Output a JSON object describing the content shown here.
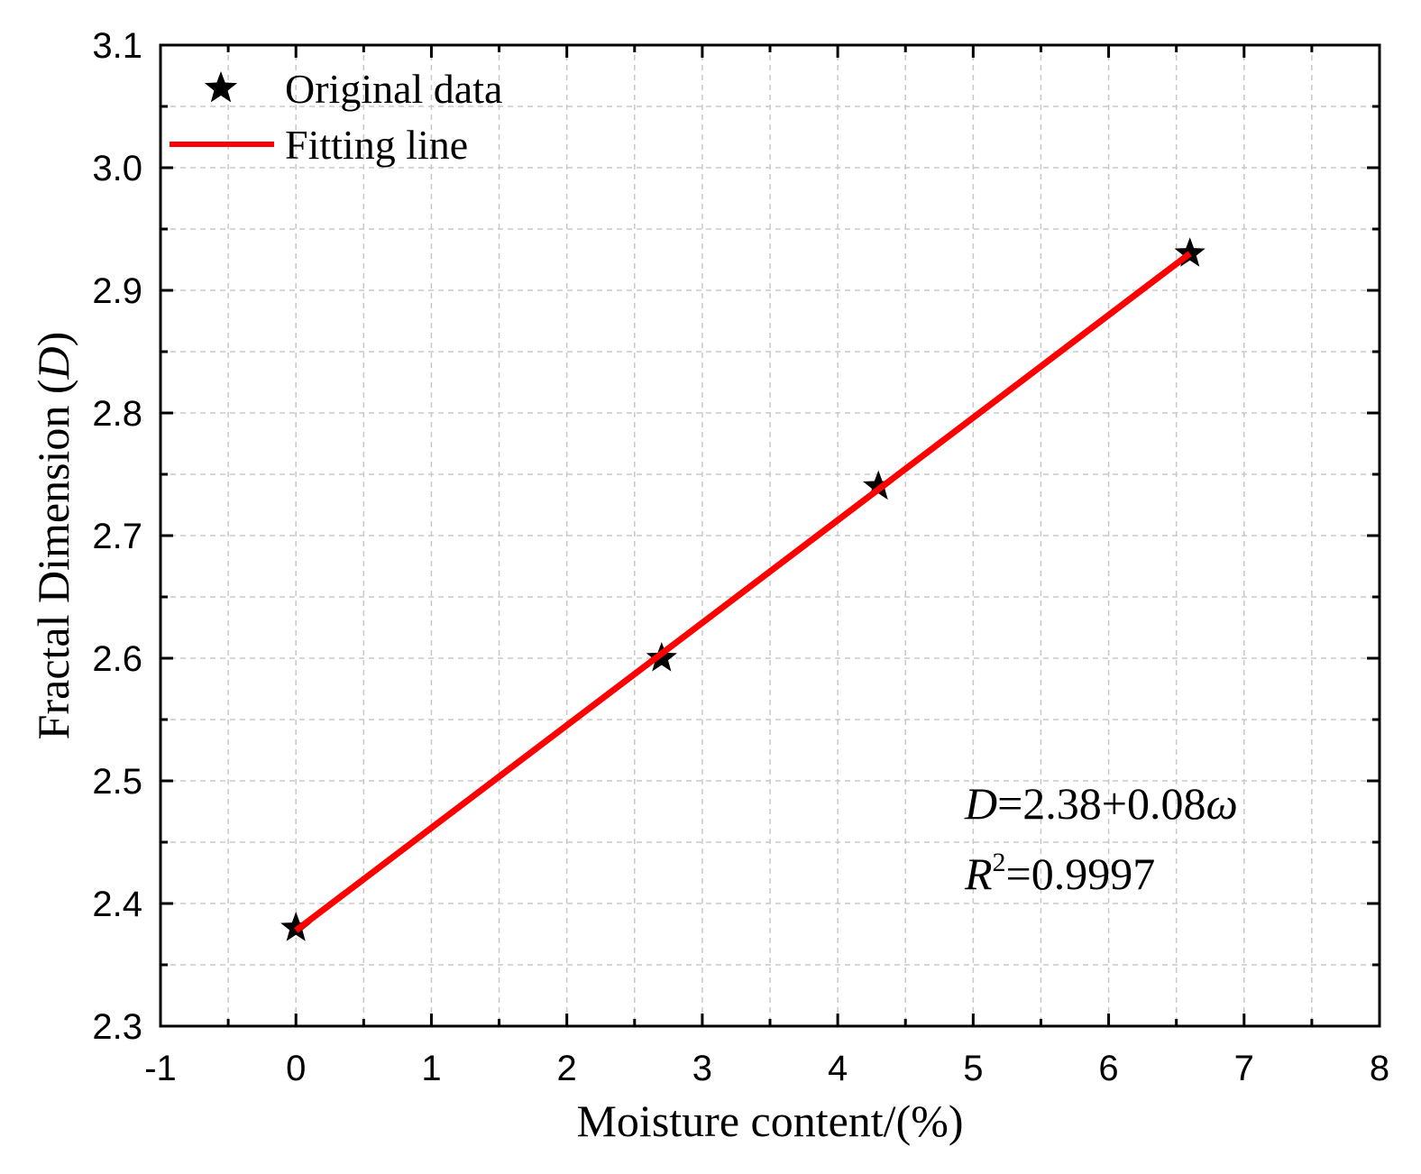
{
  "chart_data": {
    "type": "scatter",
    "title": "",
    "xlabel": "Moisture content/(%)",
    "ylabel_prefix": "Fractal Dimension (",
    "ylabel_var": "D",
    "ylabel_suffix": ")",
    "xlim": [
      -1,
      8
    ],
    "ylim": [
      2.3,
      3.1
    ],
    "xticks": [
      -1,
      0,
      1,
      2,
      3,
      4,
      5,
      6,
      7,
      8
    ],
    "xtick_labels": [
      "-1",
      "0",
      "1",
      "2",
      "3",
      "4",
      "5",
      "6",
      "7",
      "8"
    ],
    "yticks": [
      2.3,
      2.4,
      2.5,
      2.6,
      2.7,
      2.8,
      2.9,
      3.0,
      3.1
    ],
    "ytick_labels": [
      "2.3",
      "2.4",
      "2.5",
      "2.6",
      "2.7",
      "2.8",
      "2.9",
      "3.0",
      "3.1"
    ],
    "grid": true,
    "series": [
      {
        "name": "Original data",
        "kind": "scatter",
        "marker": "star",
        "color": "#000000",
        "x": [
          0,
          2.7,
          4.3,
          6.6
        ],
        "y": [
          2.38,
          2.6,
          2.74,
          2.93
        ]
      },
      {
        "name": "Fitting line",
        "kind": "line",
        "color": "#ff0000",
        "x": [
          0,
          6.6
        ],
        "y": [
          2.378,
          2.93
        ]
      }
    ],
    "legend": {
      "position": "top-left",
      "entries": [
        "Original data",
        "Fitting line"
      ]
    },
    "annotations": {
      "equation": {
        "var": "D",
        "rest": "=2.38+0.08",
        "omega": "ω"
      },
      "r2": {
        "var": "R",
        "sup": "2",
        "rest": "=0.9997"
      }
    }
  }
}
